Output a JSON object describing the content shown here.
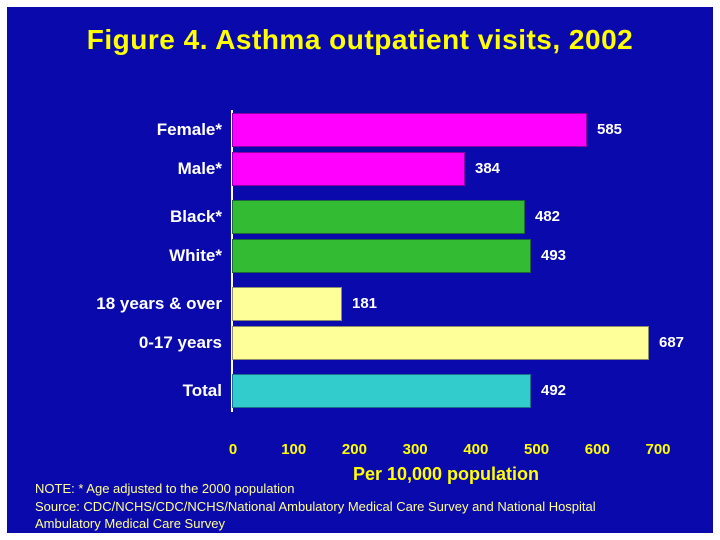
{
  "title": "Figure 4. Asthma outpatient visits, 2002",
  "chart_data": {
    "type": "bar",
    "orientation": "horizontal",
    "title": "Figure 4. Asthma outpatient visits, 2002",
    "categories": [
      "Female*",
      "Male*",
      "Black*",
      "White*",
      "18 years & over",
      "0-17 years",
      "Total"
    ],
    "values": [
      585,
      384,
      482,
      493,
      181,
      687,
      492
    ],
    "bar_colors": [
      "#FF00FF",
      "#FF00FF",
      "#33BB33",
      "#33BB33",
      "#FFFF99",
      "#FFFF99",
      "#33CCCC"
    ],
    "group_of_row": [
      0,
      0,
      1,
      1,
      2,
      2,
      3
    ],
    "xlabel": "Per 10,000 population",
    "xlim": [
      0,
      700
    ],
    "xticks": [
      0,
      100,
      200,
      300,
      400,
      500,
      600,
      700
    ],
    "grid": false,
    "value_labels_shown": true
  },
  "notes": {
    "note": "NOTE: * Age adjusted to the 2000 population",
    "source_line1": "Source: CDC/NCHS/CDC/NCHS/National Ambulatory Medical Care Survey and National Hospital",
    "source_line2": "Ambulatory Medical Care Survey"
  },
  "colors": {
    "background": "#0A0AAC",
    "frame": "#FFFFFF",
    "title_text": "#FFFF00",
    "category_text": "#FFFFFF",
    "value_text": "#FFFFFF",
    "tick_text": "#FFFF00",
    "axis_label_text": "#FFFF00",
    "note_text": "#FFFF99"
  }
}
